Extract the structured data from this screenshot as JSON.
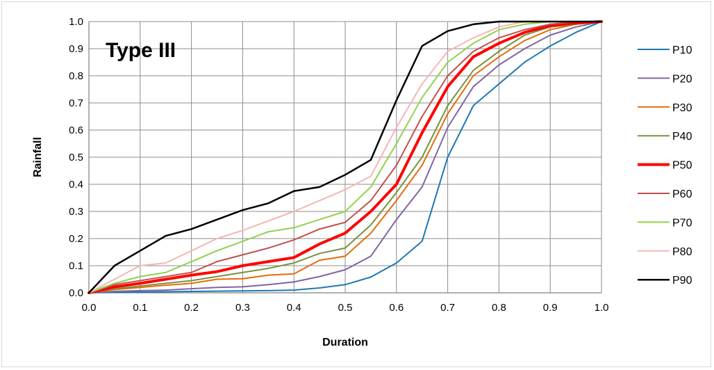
{
  "chart_data": {
    "type": "line",
    "title": "Type III",
    "xlabel": "Duration",
    "ylabel": "Rainfall",
    "xlim": [
      0,
      1
    ],
    "ylim": [
      0,
      1
    ],
    "grid": true,
    "legend_position": "right",
    "x_ticks": [
      "0.0",
      "0.1",
      "0.2",
      "0.3",
      "0.4",
      "0.5",
      "0.6",
      "0.7",
      "0.8",
      "0.9",
      "1.0"
    ],
    "y_ticks": [
      "0.0",
      "0.1",
      "0.2",
      "0.3",
      "0.4",
      "0.5",
      "0.6",
      "0.7",
      "0.8",
      "0.9",
      "1.0"
    ],
    "x": [
      0,
      0.05,
      0.1,
      0.15,
      0.2,
      0.25,
      0.3,
      0.35,
      0.4,
      0.45,
      0.5,
      0.55,
      0.6,
      0.65,
      0.7,
      0.75,
      0.8,
      0.85,
      0.9,
      0.95,
      1.0
    ],
    "series": [
      {
        "name": "P10",
        "color": "#1f77b4",
        "width": 2,
        "values": [
          0,
          0.002,
          0.003,
          0.004,
          0.005,
          0.006,
          0.007,
          0.008,
          0.01,
          0.018,
          0.03,
          0.058,
          0.11,
          0.19,
          0.5,
          0.69,
          0.77,
          0.85,
          0.91,
          0.96,
          1.0
        ]
      },
      {
        "name": "P20",
        "color": "#8064a2",
        "width": 2,
        "values": [
          0,
          0.005,
          0.008,
          0.01,
          0.015,
          0.02,
          0.022,
          0.03,
          0.04,
          0.06,
          0.085,
          0.135,
          0.27,
          0.39,
          0.61,
          0.76,
          0.84,
          0.9,
          0.95,
          0.98,
          1.0
        ]
      },
      {
        "name": "P30",
        "color": "#e46c0a",
        "width": 2,
        "values": [
          0,
          0.012,
          0.02,
          0.028,
          0.035,
          0.05,
          0.052,
          0.065,
          0.07,
          0.12,
          0.135,
          0.22,
          0.34,
          0.47,
          0.66,
          0.8,
          0.87,
          0.93,
          0.97,
          0.99,
          1.0
        ]
      },
      {
        "name": "P40",
        "color": "#77933c",
        "width": 2,
        "values": [
          0,
          0.015,
          0.025,
          0.035,
          0.045,
          0.06,
          0.075,
          0.09,
          0.11,
          0.145,
          0.165,
          0.25,
          0.37,
          0.5,
          0.69,
          0.82,
          0.89,
          0.95,
          0.98,
          0.99,
          1.0
        ]
      },
      {
        "name": "P50",
        "color": "#ff0000",
        "width": 4,
        "values": [
          0,
          0.022,
          0.035,
          0.05,
          0.065,
          0.078,
          0.1,
          0.115,
          0.13,
          0.18,
          0.22,
          0.3,
          0.4,
          0.59,
          0.76,
          0.87,
          0.92,
          0.96,
          0.985,
          0.995,
          1.0
        ]
      },
      {
        "name": "P60",
        "color": "#c0504d",
        "width": 2,
        "values": [
          0,
          0.03,
          0.045,
          0.06,
          0.075,
          0.115,
          0.14,
          0.165,
          0.195,
          0.235,
          0.26,
          0.34,
          0.47,
          0.65,
          0.8,
          0.89,
          0.94,
          0.97,
          0.99,
          1.0,
          1.0
        ]
      },
      {
        "name": "P70",
        "color": "#92d050",
        "width": 2,
        "values": [
          0,
          0.035,
          0.06,
          0.075,
          0.115,
          0.155,
          0.19,
          0.225,
          0.24,
          0.27,
          0.3,
          0.39,
          0.55,
          0.72,
          0.85,
          0.92,
          0.97,
          0.99,
          1.0,
          1.0,
          1.0
        ]
      },
      {
        "name": "P80",
        "color": "#f4b6b6",
        "width": 2,
        "values": [
          0,
          0.05,
          0.1,
          0.11,
          0.155,
          0.2,
          0.23,
          0.265,
          0.3,
          0.34,
          0.38,
          0.43,
          0.61,
          0.77,
          0.89,
          0.94,
          0.98,
          1.0,
          1.0,
          1.0,
          1.0
        ]
      },
      {
        "name": "P90",
        "color": "#000000",
        "width": 2.5,
        "values": [
          0,
          0.1,
          0.155,
          0.21,
          0.235,
          0.27,
          0.305,
          0.33,
          0.375,
          0.39,
          0.435,
          0.49,
          0.71,
          0.91,
          0.965,
          0.99,
          1.0,
          1.0,
          1.0,
          1.0,
          1.0
        ]
      }
    ]
  }
}
